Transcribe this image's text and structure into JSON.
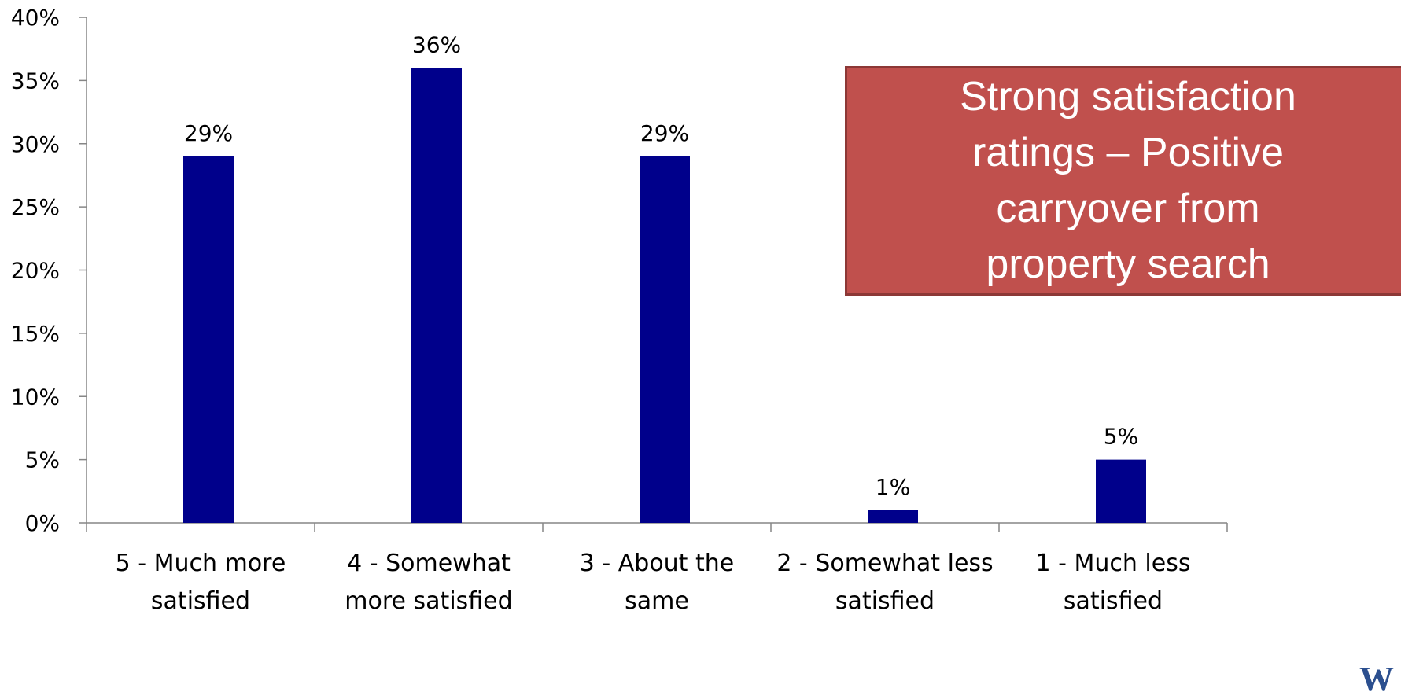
{
  "chart_data": {
    "type": "bar",
    "categories": [
      [
        "5 - Much more",
        "satisfied"
      ],
      [
        "4 - Somewhat",
        "more satisfied"
      ],
      [
        "3 - About the",
        "same"
      ],
      [
        "2 - Somewhat less",
        "satisfied"
      ],
      [
        "1 - Much less",
        "satisfied"
      ]
    ],
    "values": [
      29,
      36,
      29,
      1,
      5
    ],
    "data_labels": [
      "29%",
      "36%",
      "29%",
      "1%",
      "5%"
    ],
    "y_ticks": [
      "0%",
      "5%",
      "10%",
      "15%",
      "20%",
      "25%",
      "30%",
      "35%",
      "40%"
    ],
    "ylim": [
      0,
      40
    ],
    "bar_color": "#00008b",
    "grid": false,
    "legend": "none",
    "title": "",
    "xlabel": "",
    "ylabel": ""
  },
  "callout": {
    "text": "Strong satisfaction ratings – Positive carryover from property search",
    "background": "#c0504d"
  },
  "logo": {
    "text": "W"
  }
}
